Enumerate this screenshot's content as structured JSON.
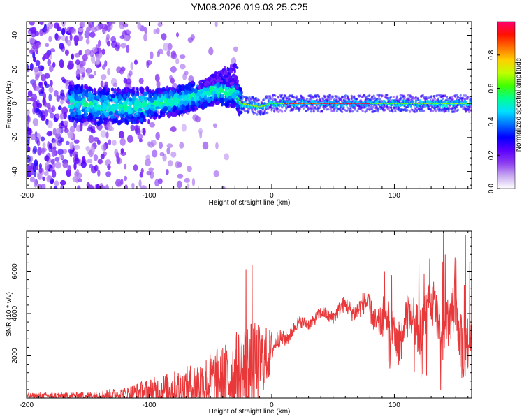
{
  "title": "YM08.2026.019.03.25.C25",
  "chart_data": [
    {
      "type": "heatmap",
      "title": "YM08.2026.019.03.25.C25",
      "xlabel": "Height of straight line (km)",
      "ylabel": "Frequency (Hz)",
      "xlim": [
        -200,
        163
      ],
      "ylim": [
        -50,
        48
      ],
      "xticks": [
        -200,
        -100,
        0,
        100
      ],
      "yticks": [
        -40,
        -20,
        0,
        20,
        40
      ],
      "description_values": {
        "ridge_center_hz": [
          {
            "x": -145,
            "y": -2
          },
          {
            "x": -100,
            "y": -1
          },
          {
            "x": -75,
            "y": 2
          },
          {
            "x": -60,
            "y": 5
          },
          {
            "x": -45,
            "y": 8
          },
          {
            "x": -30,
            "y": 6
          },
          {
            "x": -25,
            "y": 0
          },
          {
            "x": -10,
            "y": -2
          },
          {
            "x": 0,
            "y": 0
          },
          {
            "x": 163,
            "y": 0
          }
        ]
      },
      "colorbar": {
        "label": "Normalized spectral amplitude",
        "range": [
          0,
          1
        ],
        "ticks": [
          0.0,
          0.2,
          0.4,
          0.6,
          0.8
        ],
        "colors": [
          "#ffffff",
          "#c8a8f0",
          "#8c3cf0",
          "#5a00ff",
          "#0000ff",
          "#0070ff",
          "#00e0ff",
          "#00ff90",
          "#40ff00",
          "#c0ff00",
          "#ffd000",
          "#ff7000",
          "#ff1000",
          "#ff0070"
        ]
      }
    },
    {
      "type": "line",
      "xlabel": "Height of straight line (km)",
      "ylabel": "SNR (10 * v/v)",
      "xlim": [
        -200,
        163
      ],
      "ylim": [
        0,
        7900
      ],
      "xticks": [
        -200,
        -100,
        0,
        100
      ],
      "yticks": [
        2000,
        4000,
        6000
      ],
      "color": "#e8383a",
      "envelope": [
        {
          "x": -200,
          "base": 100,
          "amp": 150
        },
        {
          "x": -150,
          "base": 120,
          "amp": 200
        },
        {
          "x": -120,
          "base": 200,
          "amp": 350
        },
        {
          "x": -100,
          "base": 300,
          "amp": 700
        },
        {
          "x": -70,
          "base": 500,
          "amp": 1100
        },
        {
          "x": -40,
          "base": 900,
          "amp": 1800
        },
        {
          "x": -20,
          "base": 1200,
          "amp": 2800
        },
        {
          "x": 0,
          "base": 2200,
          "amp": 1200
        },
        {
          "x": 20,
          "base": 3300,
          "amp": 700
        },
        {
          "x": 40,
          "base": 4000,
          "amp": 700
        },
        {
          "x": 60,
          "base": 4200,
          "amp": 1000
        },
        {
          "x": 80,
          "base": 4000,
          "amp": 1500
        },
        {
          "x": 100,
          "base": 3500,
          "amp": 2500
        },
        {
          "x": 130,
          "base": 3500,
          "amp": 3000
        },
        {
          "x": 163,
          "base": 3500,
          "amp": 3500
        }
      ],
      "spikes": [
        {
          "x": -21,
          "y": 6100
        },
        {
          "x": -16,
          "y": 6300
        },
        {
          "x": 92,
          "y": 6000
        },
        {
          "x": 140,
          "y": 7800
        },
        {
          "x": 158,
          "y": 7700
        },
        {
          "x": 120,
          "y": 6400
        }
      ]
    }
  ]
}
